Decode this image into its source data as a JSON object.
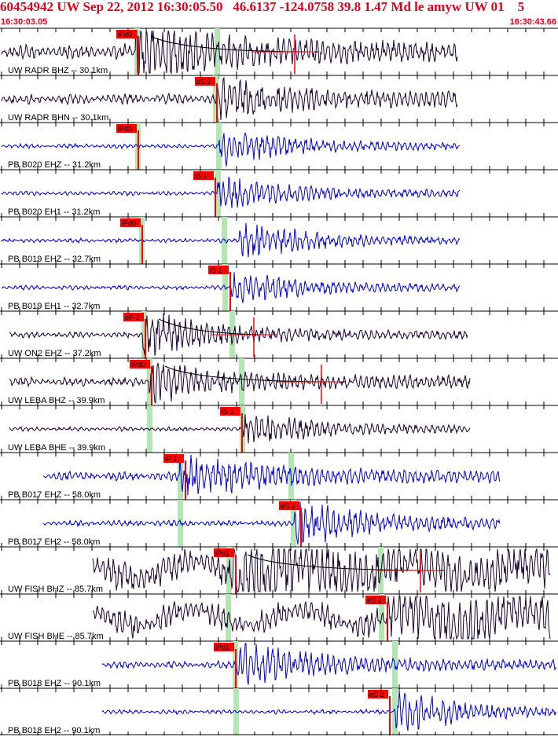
{
  "header": {
    "title": "60454942 UW Sep 22, 2012 16:30:05.50   46.6137 -124.0758 39.8 1.47 Md le amyw UW 01    5",
    "time_start": "16:30:03.05",
    "time_end": "16:30:43.66"
  },
  "colors": {
    "text_red": "#e4001c",
    "pick_box": "#ff0000",
    "pick_band": "#b4e6b4",
    "trace_uw": "#1a0033",
    "trace_pb": "#0000e0",
    "ticks": "#000000"
  },
  "traces": [
    {
      "label": "UW RADR BHZ -- 30.1km",
      "pick": "iPd0",
      "network": "UW"
    },
    {
      "label": "UW RADR BHN -- 30.1km",
      "pick": "eS 2",
      "network": "UW"
    },
    {
      "label": "PB B020 EHZ -- 31.2km",
      "pick": "iPd0",
      "network": "PB"
    },
    {
      "label": "PB B020 EH1 -- 31.2km",
      "pick": "iS 1",
      "network": "PB"
    },
    {
      "label": "PB B019 EHZ -- 32.7km",
      "pick": "iPd0",
      "network": "PB"
    },
    {
      "label": "PB B019 EH1 -- 32.7km",
      "pick": "iS 1",
      "network": "PB"
    },
    {
      "label": "UW ON2 EHZ -- 37.2km",
      "pick": "eP 3",
      "network": "UW"
    },
    {
      "label": "UW LEBA BHZ -- 39.9km",
      "pick": "iPd0",
      "network": "UW"
    },
    {
      "label": "UW LEBA BHE -- 39.9km",
      "pick": "iS 1",
      "network": "UW"
    },
    {
      "label": "PB B017 EHZ -- 58.0km",
      "pick": "iP 1",
      "network": "PB"
    },
    {
      "label": "PB B017 EH2 -- 58.0km",
      "pick": "eS 2",
      "network": "PB"
    },
    {
      "label": "UW FISH BHZ -- 85.7km",
      "pick": "iPd1",
      "network": "UW"
    },
    {
      "label": "UW FISH BHE -- 85.7km",
      "pick": "eS 2",
      "network": "UW"
    },
    {
      "label": "PB B018 EHZ -- 90.1km",
      "pick": "iPd1",
      "network": "PB"
    },
    {
      "label": "PB B018 EH2 -- 90.1km",
      "pick": "eS 2",
      "network": "PB"
    }
  ]
}
